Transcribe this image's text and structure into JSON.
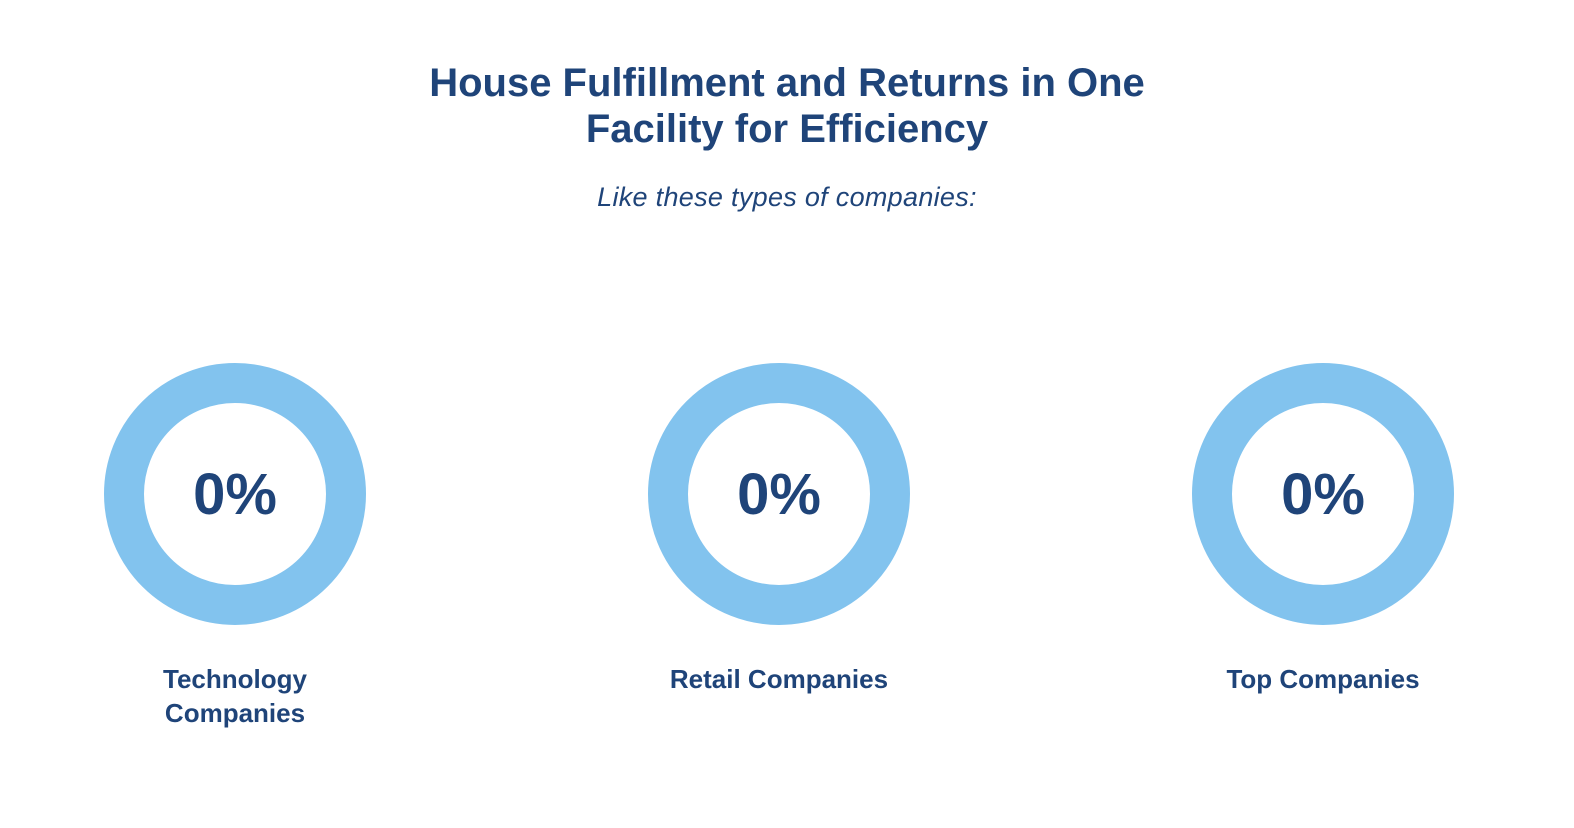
{
  "header": {
    "title_line1": "House Fulfillment and Returns in One",
    "title_line2": "Facility for Efficiency",
    "subtitle": "Like these types of companies:"
  },
  "colors": {
    "primary": "#1f4479",
    "ring": "#82c3ee",
    "background": "#ffffff"
  },
  "chart_data": [
    {
      "type": "pie",
      "label": "Technology Companies",
      "value": 0,
      "value_text": "0%"
    },
    {
      "type": "pie",
      "label": "Retail Companies",
      "value": 0,
      "value_text": "0%"
    },
    {
      "type": "pie",
      "label": "Top Companies",
      "value": 0,
      "value_text": "0%"
    }
  ]
}
